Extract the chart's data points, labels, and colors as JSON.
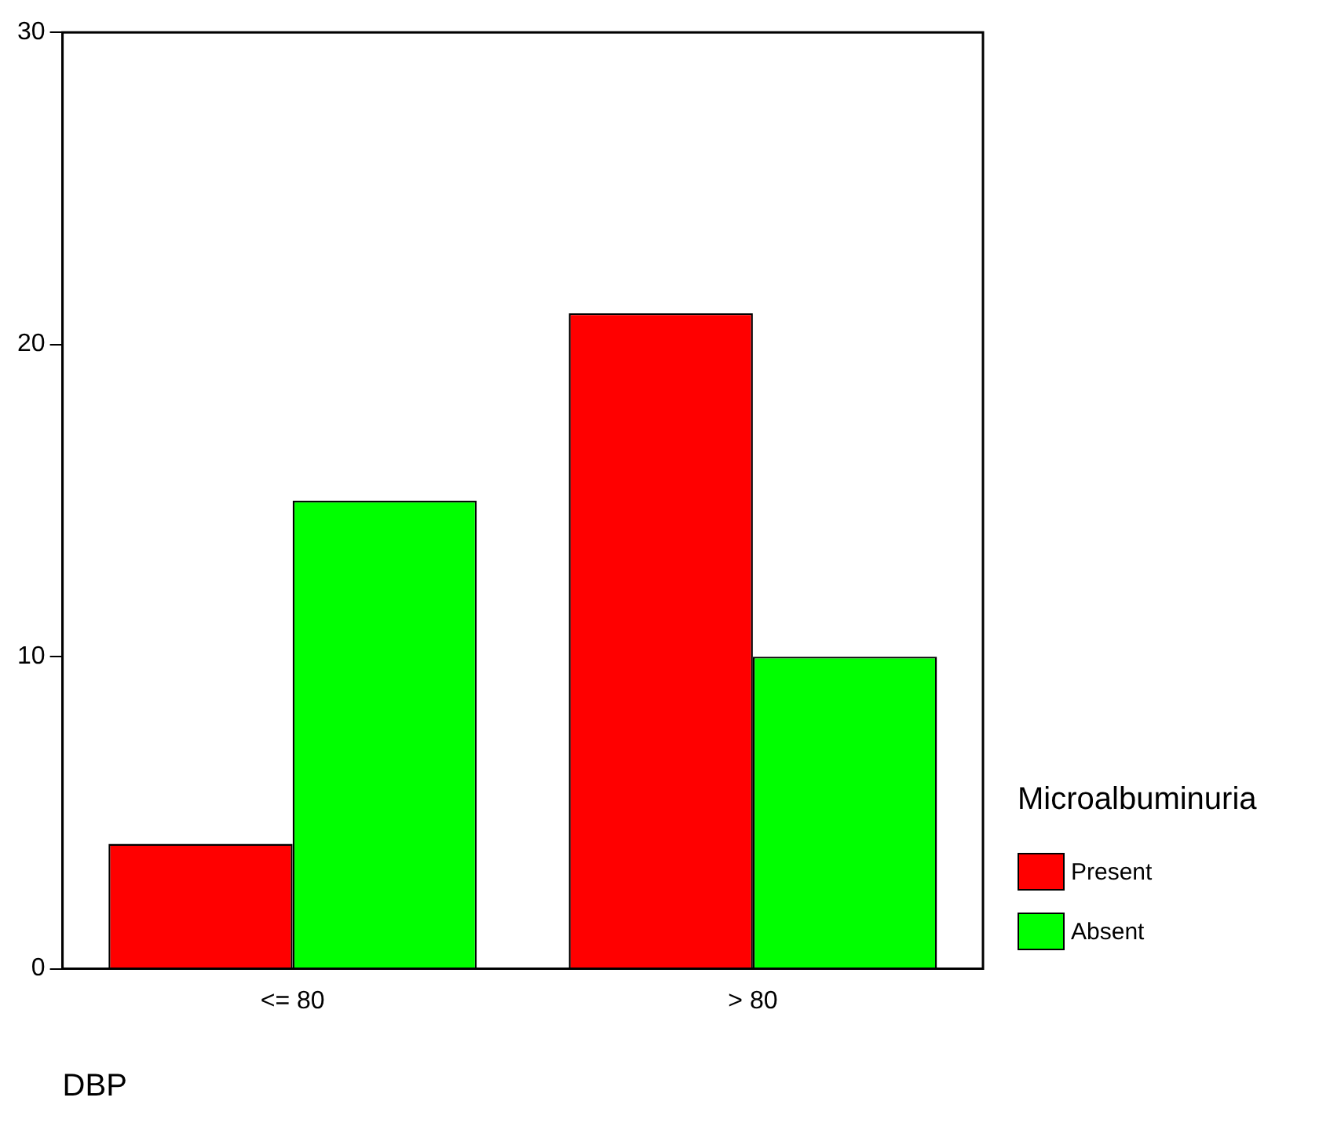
{
  "chart_data": {
    "type": "bar",
    "xlabel": "DBP",
    "legend_title": "Microalbuminuria",
    "categories": [
      "<= 80",
      "> 80"
    ],
    "series": [
      {
        "name": "Present",
        "color": "#ff0000",
        "values": [
          4,
          21
        ]
      },
      {
        "name": "Absent",
        "color": "#00ff00",
        "values": [
          15,
          10
        ]
      }
    ],
    "ylim": [
      0,
      30
    ],
    "yticks": [
      0,
      10,
      20,
      30
    ],
    "grid": false,
    "legend": "right"
  }
}
